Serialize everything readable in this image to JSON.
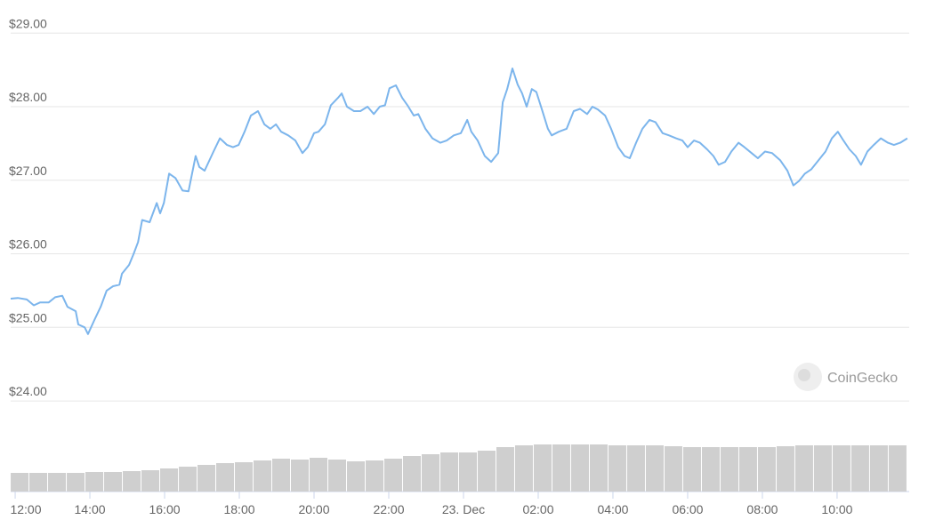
{
  "chart_data": [
    {
      "type": "line",
      "watermark": "CoinGecko",
      "x": [
        -0.12,
        0.07,
        0.31,
        0.5,
        0.67,
        0.9,
        1.07,
        1.26,
        1.4,
        1.62,
        1.69,
        1.86,
        1.95,
        2.12,
        2.29,
        2.45,
        2.62,
        2.79,
        2.86,
        3.05,
        3.17,
        3.29,
        3.4,
        3.6,
        3.79,
        3.88,
        3.98,
        4.12,
        4.29,
        4.48,
        4.64,
        4.83,
        4.93,
        5.07,
        5.31,
        5.48,
        5.67,
        5.83,
        5.98,
        6.14,
        6.31,
        6.5,
        6.67,
        6.83,
        6.98,
        7.12,
        7.31,
        7.5,
        7.69,
        7.83,
        8,
        8.12,
        8.29,
        8.45,
        8.64,
        8.74,
        8.88,
        9.07,
        9.24,
        9.43,
        9.6,
        9.76,
        9.9,
        10.02,
        10.19,
        10.36,
        10.5,
        10.67,
        10.79,
        10.98,
        11.17,
        11.38,
        11.55,
        11.74,
        11.93,
        12.1,
        12.21,
        12.38,
        12.57,
        12.74,
        12.93,
        13.05,
        13.17,
        13.31,
        13.45,
        13.57,
        13.69,
        13.83,
        13.95,
        14.1,
        14.26,
        14.36,
        14.55,
        14.76,
        14.95,
        15.12,
        15.31,
        15.45,
        15.6,
        15.79,
        15.95,
        16.14,
        16.31,
        16.45,
        16.62,
        16.79,
        16.98,
        17.14,
        17.33,
        17.5,
        17.69,
        17.86,
        18,
        18.17,
        18.33,
        18.52,
        18.69,
        18.83,
        19,
        19.17,
        19.36,
        19.52,
        19.71,
        19.88,
        20.07,
        20.26,
        20.48,
        20.67,
        20.83,
        20.98,
        21.14,
        21.31,
        21.5,
        21.69,
        21.86,
        22.02,
        22.17,
        22.33,
        22.5,
        22.64,
        22.81,
        22.98,
        23.17,
        23.36,
        23.52,
        23.69,
        23.88
      ],
      "series": [
        {
          "color": "#7cb5ec",
          "values": [
            25.39,
            25.4,
            25.38,
            25.3,
            25.34,
            25.34,
            25.41,
            25.43,
            25.28,
            25.22,
            25.04,
            25.0,
            24.91,
            25.1,
            25.28,
            25.5,
            25.56,
            25.58,
            25.73,
            25.85,
            26.0,
            26.16,
            26.46,
            26.43,
            26.69,
            26.55,
            26.69,
            27.09,
            27.03,
            26.86,
            26.85,
            27.33,
            27.18,
            27.13,
            27.39,
            27.57,
            27.48,
            27.45,
            27.48,
            27.66,
            27.88,
            27.94,
            27.76,
            27.7,
            27.76,
            27.66,
            27.61,
            27.54,
            27.37,
            27.45,
            27.64,
            27.66,
            27.76,
            28.02,
            28.12,
            28.18,
            28.0,
            27.94,
            27.94,
            28.0,
            27.9,
            28.0,
            28.02,
            28.25,
            28.29,
            28.12,
            28.02,
            27.88,
            27.9,
            27.7,
            27.57,
            27.51,
            27.54,
            27.61,
            27.64,
            27.82,
            27.66,
            27.54,
            27.33,
            27.25,
            27.37,
            28.06,
            28.24,
            28.52,
            28.3,
            28.18,
            28.0,
            28.24,
            28.2,
            27.96,
            27.7,
            27.61,
            27.66,
            27.7,
            27.94,
            27.97,
            27.9,
            28.0,
            27.96,
            27.88,
            27.7,
            27.45,
            27.33,
            27.3,
            27.51,
            27.7,
            27.82,
            27.79,
            27.64,
            27.61,
            27.57,
            27.54,
            27.45,
            27.54,
            27.51,
            27.42,
            27.33,
            27.21,
            27.25,
            27.39,
            27.51,
            27.45,
            27.37,
            27.3,
            27.39,
            27.37,
            27.27,
            27.13,
            26.93,
            26.99,
            27.09,
            27.15,
            27.27,
            27.39,
            27.57,
            27.66,
            27.54,
            27.42,
            27.33,
            27.21,
            27.39,
            27.48,
            27.57,
            27.51,
            27.48,
            27.51,
            27.57
          ]
        }
      ],
      "xlim": [
        -0.12,
        23.93
      ],
      "xticks": [
        {
          "value": 0,
          "label": "12:00"
        },
        {
          "value": 2,
          "label": "14:00"
        },
        {
          "value": 4,
          "label": "16:00"
        },
        {
          "value": 6,
          "label": "18:00"
        },
        {
          "value": 8,
          "label": "20:00"
        },
        {
          "value": 10,
          "label": "22:00"
        },
        {
          "value": 12,
          "label": "23. Dec"
        },
        {
          "value": 14,
          "label": "02:00"
        },
        {
          "value": 16,
          "label": "04:00"
        },
        {
          "value": 18,
          "label": "06:00"
        },
        {
          "value": 20,
          "label": "08:00"
        },
        {
          "value": 22,
          "label": "10:00"
        }
      ],
      "ylim": [
        23.3,
        29.1
      ],
      "yticks": [
        {
          "value": 24,
          "label": "$24.00"
        },
        {
          "value": 25,
          "label": "$25.00"
        },
        {
          "value": 26,
          "label": "$26.00"
        },
        {
          "value": 27,
          "label": "$27.00"
        },
        {
          "value": 28,
          "label": "$28.00"
        },
        {
          "value": 29,
          "label": "$29.00"
        }
      ],
      "grid": true
    },
    {
      "type": "bar",
      "color": "#cfcfcf",
      "x": [
        0,
        0.5,
        1,
        1.5,
        2,
        2.5,
        3,
        3.5,
        4,
        4.5,
        5,
        5.5,
        6,
        6.5,
        7,
        7.5,
        8,
        8.5,
        9,
        9.5,
        10,
        10.5,
        11,
        11.5,
        12,
        12.5,
        13,
        13.5,
        14,
        14.5,
        15,
        15.5,
        16,
        16.5,
        17,
        17.5,
        18,
        18.5,
        19,
        19.5,
        20,
        20.5,
        21,
        21.5,
        22,
        22.5,
        23,
        23.5
      ],
      "values": [
        21,
        21,
        21,
        21,
        22,
        22,
        23,
        24,
        26,
        28,
        30,
        32,
        33,
        35,
        37,
        36,
        38,
        36,
        34,
        35,
        37,
        40,
        42,
        44,
        44,
        46,
        50,
        52,
        53,
        53,
        53,
        53,
        52,
        52,
        52,
        51,
        50,
        50,
        50,
        50,
        50,
        51,
        52,
        52,
        52,
        52,
        52,
        52
      ],
      "xlim": [
        -0.12,
        23.93
      ],
      "ylim": [
        0,
        55
      ]
    }
  ]
}
